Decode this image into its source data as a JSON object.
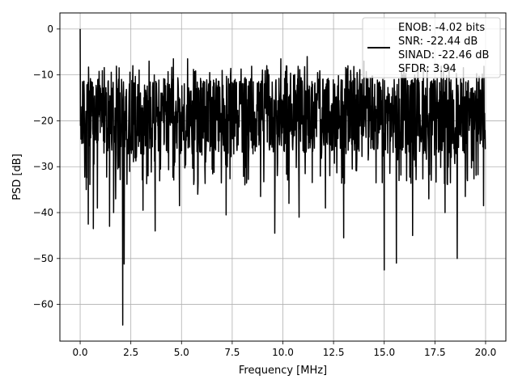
{
  "chart_data": {
    "type": "line",
    "xlabel": "Frequency [MHz]",
    "ylabel": "PSD [dB]",
    "xlim": [
      -1,
      21
    ],
    "ylim": [
      -68,
      3.5
    ],
    "xticks": [
      0.0,
      2.5,
      5.0,
      7.5,
      10.0,
      12.5,
      15.0,
      17.5,
      20.0
    ],
    "xtick_labels": [
      "0.0",
      "2.5",
      "5.0",
      "7.5",
      "10.0",
      "12.5",
      "15.0",
      "17.5",
      "20.0"
    ],
    "yticks": [
      0,
      -10,
      -20,
      -30,
      -40,
      -50,
      -60
    ],
    "ytick_labels": [
      "0",
      "−10",
      "−20",
      "−30",
      "−40",
      "−50",
      "−60"
    ],
    "grid": true,
    "legend_position": "upper-right",
    "series_color": "#000000",
    "legend": {
      "lines": [
        "ENOB: -4.02 bits",
        "SNR: -22.44 dB",
        "SINAD: -22.46 dB",
        "SFDR: 3.94"
      ]
    },
    "series": [
      {
        "x_range": [
          0,
          20
        ],
        "n_points": 1500,
        "band_center": -19,
        "band_low": -27,
        "band_high": -12,
        "features": [
          {
            "x": 0.0,
            "y": 0.0
          },
          {
            "x": 0.04,
            "y": -24
          },
          {
            "x": 0.3,
            "y": -35
          },
          {
            "x": 0.4,
            "y": -42.5
          },
          {
            "x": 0.65,
            "y": -43.5
          },
          {
            "x": 0.85,
            "y": -39
          },
          {
            "x": 1.45,
            "y": -43
          },
          {
            "x": 1.65,
            "y": -40
          },
          {
            "x": 1.75,
            "y": -37
          },
          {
            "x": 2.1,
            "y": -64.5
          },
          {
            "x": 2.17,
            "y": -51.2
          },
          {
            "x": 2.6,
            "y": -8
          },
          {
            "x": 3.1,
            "y": -39.5
          },
          {
            "x": 3.4,
            "y": -7
          },
          {
            "x": 3.7,
            "y": -44
          },
          {
            "x": 4.6,
            "y": -6.5
          },
          {
            "x": 4.9,
            "y": -38.5
          },
          {
            "x": 5.3,
            "y": -6.5
          },
          {
            "x": 5.8,
            "y": -36
          },
          {
            "x": 7.2,
            "y": -40.5
          },
          {
            "x": 8.9,
            "y": -36.5
          },
          {
            "x": 9.6,
            "y": -44.5
          },
          {
            "x": 9.9,
            "y": -6.5
          },
          {
            "x": 10.3,
            "y": -38
          },
          {
            "x": 10.8,
            "y": -41
          },
          {
            "x": 11.2,
            "y": -6
          },
          {
            "x": 12.1,
            "y": -39
          },
          {
            "x": 13.0,
            "y": -45.5
          },
          {
            "x": 14.0,
            "y": -7
          },
          {
            "x": 15.0,
            "y": -52.5
          },
          {
            "x": 15.6,
            "y": -51
          },
          {
            "x": 16.4,
            "y": -45
          },
          {
            "x": 17.2,
            "y": -37
          },
          {
            "x": 18.0,
            "y": -40
          },
          {
            "x": 18.6,
            "y": -50
          },
          {
            "x": 19.0,
            "y": -36.5
          },
          {
            "x": 19.9,
            "y": -38.5
          }
        ]
      }
    ]
  }
}
